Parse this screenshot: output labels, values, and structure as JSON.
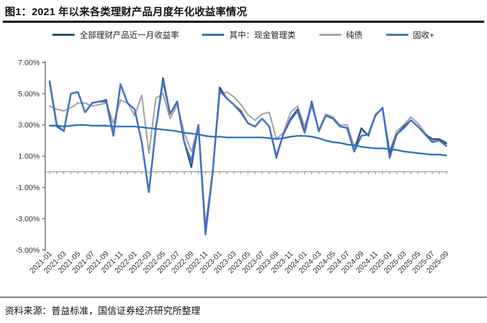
{
  "figure": {
    "title": "图1：2021 年以来各类理财产品月度年化收益率情况",
    "source": "资料来源：普益标准，国信证券经济研究所整理"
  },
  "chart_data": {
    "type": "line",
    "title": "图1：2021 年以来各类理财产品月度年化收益率情况",
    "xlabel": "",
    "ylabel": "",
    "ylim": [
      -5,
      7
    ],
    "grid": false,
    "legend_position": "top",
    "zero_line": true,
    "y_ticks": [
      7,
      5,
      3,
      1,
      -1,
      -3,
      -5
    ],
    "y_tick_labels": [
      "7.00%",
      "5.00%",
      "3.00%",
      "1.00%",
      "-1.00%",
      "-3.00%",
      "-5.00%"
    ],
    "x": [
      "2021-01",
      "2021-02",
      "2021-03",
      "2021-04",
      "2021-05",
      "2021-06",
      "2021-07",
      "2021-08",
      "2021-09",
      "2021-10",
      "2021-11",
      "2021-12",
      "2022-01",
      "2022-02",
      "2022-03",
      "2022-04",
      "2022-05",
      "2022-06",
      "2022-07",
      "2022-08",
      "2022-09",
      "2022-10",
      "2022-11",
      "2022-12",
      "2023-01",
      "2023-02",
      "2023-03",
      "2023-04",
      "2023-05",
      "2023-06",
      "2023-07",
      "2023-08",
      "2023-09",
      "2023-10",
      "2023-11",
      "2023-12",
      "2024-01",
      "2024-02",
      "2024-03",
      "2024-04",
      "2024-05",
      "2024-06",
      "2024-07",
      "2024-08",
      "2024-09",
      "2024-10",
      "2024-11",
      "2024-12",
      "2025-01",
      "2025-02",
      "2025-03",
      "2025-04",
      "2025-05",
      "2025-06",
      "2025-07",
      "2025-08",
      "2025-09"
    ],
    "x_tick_labels": [
      "2021-01",
      "2021-03",
      "2021-05",
      "2021-07",
      "2021-09",
      "2021-11",
      "2022-01",
      "2022-03",
      "2022-05",
      "2022-07",
      "2022-09",
      "2022-11",
      "2023-01",
      "2023-03",
      "2023-05",
      "2023-07",
      "2023-09",
      "2023-11",
      "2024-01",
      "2024-03",
      "2024-05",
      "2024-07",
      "2024-09",
      "2024-11",
      "2025-01",
      "2025-03",
      "2025-05",
      "2025-07",
      "2025-09"
    ],
    "x_tick_every": 2,
    "series": [
      {
        "name": "全部理财产品近一月收益率",
        "color": "#1F4E79",
        "values": [
          5.7,
          2.9,
          2.6,
          5.0,
          5.1,
          3.8,
          4.4,
          4.5,
          4.6,
          2.4,
          5.6,
          4.4,
          4.0,
          1.9,
          -1.3,
          2.8,
          6.0,
          3.7,
          4.5,
          1.9,
          0.3,
          3.0,
          -3.8,
          -0.1,
          5.4,
          4.7,
          4.3,
          3.9,
          3.1,
          2.9,
          3.4,
          2.9,
          0.9,
          2.4,
          3.4,
          4.0,
          2.6,
          4.5,
          2.6,
          3.6,
          3.4,
          2.9,
          2.8,
          1.3,
          2.8,
          2.3,
          3.6,
          4.1,
          1.2,
          2.4,
          2.9,
          3.3,
          2.9,
          2.4,
          2.1,
          2.1,
          1.8
        ]
      },
      {
        "name": "其中：现金管理类",
        "color": "#2E75B6",
        "values": [
          2.95,
          2.95,
          2.9,
          2.95,
          3.0,
          3.0,
          2.95,
          2.95,
          2.95,
          2.9,
          2.9,
          2.9,
          2.9,
          2.85,
          2.8,
          2.75,
          2.7,
          2.65,
          2.6,
          2.5,
          2.45,
          2.4,
          2.3,
          2.25,
          2.25,
          2.2,
          2.2,
          2.2,
          2.2,
          2.2,
          2.2,
          2.15,
          2.1,
          2.15,
          2.25,
          2.3,
          2.3,
          2.25,
          2.15,
          2.0,
          1.9,
          1.85,
          1.75,
          1.7,
          1.6,
          1.55,
          1.5,
          1.5,
          1.45,
          1.4,
          1.3,
          1.25,
          1.2,
          1.15,
          1.1,
          1.1,
          1.05
        ]
      },
      {
        "name": "纯债",
        "color": "#A6A6A6",
        "values": [
          4.2,
          4.0,
          3.9,
          4.1,
          4.4,
          4.4,
          4.2,
          4.3,
          4.4,
          3.1,
          4.6,
          4.4,
          3.6,
          4.9,
          1.2,
          4.7,
          5.0,
          3.4,
          4.3,
          2.5,
          1.3,
          2.9,
          -3.4,
          0.0,
          5.0,
          5.1,
          4.8,
          4.3,
          3.65,
          3.3,
          3.7,
          3.8,
          2.1,
          2.5,
          3.8,
          4.2,
          2.9,
          4.2,
          2.7,
          3.7,
          3.5,
          3.0,
          3.0,
          1.6,
          2.6,
          2.4,
          3.7,
          4.0,
          1.3,
          2.6,
          3.0,
          3.5,
          3.1,
          2.5,
          2.0,
          2.1,
          1.9
        ]
      },
      {
        "name": "固收+",
        "color": "#4472C4",
        "values": [
          5.8,
          3.0,
          2.6,
          5.0,
          5.1,
          3.8,
          4.4,
          4.5,
          4.5,
          2.3,
          5.6,
          4.4,
          4.0,
          1.9,
          -1.3,
          2.8,
          5.8,
          3.7,
          4.5,
          1.9,
          0.7,
          3.0,
          -4.0,
          -0.1,
          5.2,
          4.7,
          4.3,
          3.8,
          3.1,
          2.9,
          3.4,
          2.9,
          1.0,
          2.4,
          3.3,
          3.9,
          2.5,
          4.4,
          2.6,
          3.6,
          3.4,
          2.9,
          2.8,
          1.3,
          2.3,
          2.4,
          3.6,
          4.1,
          0.9,
          2.4,
          2.8,
          3.3,
          2.9,
          2.4,
          1.9,
          2.0,
          1.65
        ]
      }
    ],
    "draw_order": [
      2,
      0,
      3,
      1
    ],
    "stroke_widths": [
      2.2,
      2.4,
      2.2,
      2.6
    ],
    "axis_color": "#595959",
    "zero_line_color": "#8c8c8c",
    "tick_label_color": "#333333"
  }
}
